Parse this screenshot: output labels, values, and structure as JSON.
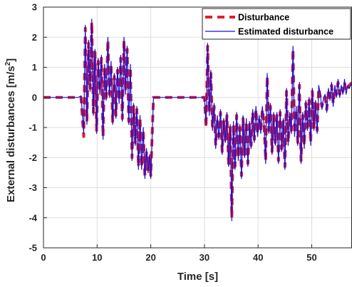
{
  "chart_data": {
    "type": "line",
    "xlabel": "Time [s]",
    "ylabel_main": "External disturbances [m/s",
    "ylabel_sup": "2",
    "ylabel_end": "]",
    "xlim": [
      0,
      57.5
    ],
    "ylim": [
      -5,
      3
    ],
    "xticks": [
      0,
      10,
      20,
      30,
      40,
      50
    ],
    "yticks": [
      -5,
      -4,
      -3,
      -2,
      -1,
      0,
      1,
      2,
      3
    ],
    "grid": true,
    "legend_position": "top-right",
    "colors": {
      "disturbance": "#e0202a",
      "estimated": "#1010e0",
      "grid": "#dedede",
      "axis": "#262626"
    },
    "series": [
      {
        "name": "Disturbance",
        "style": "dashed",
        "x": [
          0,
          6.5,
          7,
          7.5,
          7.8,
          8.1,
          8.4,
          8.7,
          9,
          9.3,
          9.6,
          9.9,
          10.2,
          10.5,
          10.8,
          11.1,
          11.4,
          11.7,
          12,
          12.3,
          12.6,
          12.9,
          13.2,
          13.5,
          13.8,
          14.1,
          14.4,
          14.7,
          15,
          15.3,
          15.6,
          15.9,
          16.2,
          16.5,
          16.8,
          17.1,
          17.4,
          17.7,
          18,
          18.3,
          18.6,
          18.9,
          19.2,
          19.5,
          19.8,
          20,
          20.5,
          30,
          30.3,
          30.6,
          30.9,
          31.2,
          31.5,
          31.8,
          32.1,
          32.4,
          32.7,
          33,
          33.3,
          33.6,
          33.9,
          34.2,
          34.5,
          34.8,
          35.1,
          35.4,
          35.7,
          36,
          36.3,
          36.6,
          36.9,
          37.2,
          37.5,
          37.8,
          38.1,
          38.4,
          38.7,
          39,
          39.3,
          39.6,
          39.9,
          40.2,
          40.5,
          40.8,
          41.1,
          41.4,
          41.7,
          42,
          42.3,
          42.6,
          42.9,
          43.2,
          43.5,
          43.8,
          44.1,
          44.4,
          44.7,
          45,
          45.3,
          45.6,
          45.9,
          46.2,
          46.5,
          46.8,
          47.1,
          47.4,
          47.7,
          48,
          48.3,
          48.6,
          48.9,
          49.2,
          49.5,
          49.8,
          50.1,
          50.4,
          50.7,
          51,
          51.3,
          51.6,
          51.9,
          52.2,
          52.5,
          52.8,
          53.1,
          53.4,
          53.7,
          54,
          54.3,
          54.6,
          54.9,
          55.2,
          55.5,
          55.8,
          56.1,
          56.4,
          56.7,
          57,
          57.5
        ],
        "y": [
          0,
          0,
          0,
          -1.3,
          2.3,
          -0.8,
          1.8,
          0.3,
          2.5,
          -0.5,
          1.5,
          -1.1,
          1.2,
          0.2,
          1.3,
          -1.3,
          1.0,
          0.0,
          1.9,
          0.1,
          1.1,
          -0.8,
          0.7,
          -0.6,
          0.9,
          -0.1,
          1.3,
          -0.7,
          1.9,
          0.2,
          1.6,
          -0.8,
          1.0,
          -2.0,
          -0.3,
          -1.5,
          -0.4,
          -2.3,
          -0.7,
          -2.3,
          -1.1,
          -2.6,
          -1.8,
          -2.4,
          -2.0,
          -2.6,
          0,
          0,
          -1.0,
          1.7,
          -0.5,
          0.8,
          -1.0,
          -0.3,
          -1.6,
          -0.7,
          -1.3,
          -0.5,
          -1.8,
          -0.8,
          -1.4,
          -0.6,
          -2.2,
          -1.0,
          -4.0,
          -0.9,
          -2.3,
          -0.6,
          -2.0,
          -1.0,
          -2.6,
          -0.7,
          -1.9,
          -0.8,
          -2.2,
          -0.9,
          -1.6,
          -0.5,
          -1.4,
          -0.4,
          -1.2,
          -0.7,
          -1.1,
          -0.4,
          -0.8,
          -2.1,
          0.7,
          -1.1,
          -0.3,
          -1.8,
          -0.6,
          -1.5,
          -0.6,
          -2.1,
          -0.5,
          -1.7,
          -0.8,
          -2.3,
          0.2,
          -1.5,
          -0.6,
          -1.1,
          1.6,
          -1.2,
          -0.4,
          -1.5,
          0.4,
          -2.1,
          -0.6,
          -1.6,
          -0.2,
          -1.0,
          -0.1,
          -1.5,
          0.2,
          -1.0,
          -0.2,
          -1.1,
          0.3,
          0.0,
          -0.3,
          -0.1,
          0.0,
          -0.4,
          0.2,
          0.0,
          0.4,
          -0.2,
          0.3,
          0.1,
          0.5,
          0.1,
          0.3,
          0.2,
          0.5,
          0.2,
          0.3,
          0.4,
          0.5
        ]
      },
      {
        "name": "Estimated disturbance",
        "style": "solid",
        "x": [
          0,
          6.5,
          7,
          7.5,
          7.8,
          8.1,
          8.4,
          8.7,
          9,
          9.3,
          9.6,
          9.9,
          10.2,
          10.5,
          10.8,
          11.1,
          11.4,
          11.7,
          12,
          12.3,
          12.6,
          12.9,
          13.2,
          13.5,
          13.8,
          14.1,
          14.4,
          14.7,
          15,
          15.3,
          15.6,
          15.9,
          16.2,
          16.5,
          16.8,
          17.1,
          17.4,
          17.7,
          18,
          18.3,
          18.6,
          18.9,
          19.2,
          19.5,
          19.8,
          20,
          20.5,
          30,
          30.3,
          30.6,
          30.9,
          31.2,
          31.5,
          31.8,
          32.1,
          32.4,
          32.7,
          33,
          33.3,
          33.6,
          33.9,
          34.2,
          34.5,
          34.8,
          35.1,
          35.4,
          35.7,
          36,
          36.3,
          36.6,
          36.9,
          37.2,
          37.5,
          37.8,
          38.1,
          38.4,
          38.7,
          39,
          39.3,
          39.6,
          39.9,
          40.2,
          40.5,
          40.8,
          41.1,
          41.4,
          41.7,
          42,
          42.3,
          42.6,
          42.9,
          43.2,
          43.5,
          43.8,
          44.1,
          44.4,
          44.7,
          45,
          45.3,
          45.6,
          45.9,
          46.2,
          46.5,
          46.8,
          47.1,
          47.4,
          47.7,
          48,
          48.3,
          48.6,
          48.9,
          49.2,
          49.5,
          49.8,
          50.1,
          50.4,
          50.7,
          51,
          51.3,
          51.6,
          51.9,
          52.2,
          52.5,
          52.8,
          53.1,
          53.4,
          53.7,
          54,
          54.3,
          54.6,
          54.9,
          55.2,
          55.5,
          55.8,
          56.1,
          56.4,
          56.7,
          57,
          57.5
        ],
        "y": [
          0,
          0,
          0.05,
          -1.2,
          2.4,
          -0.9,
          1.9,
          0.2,
          2.6,
          -0.6,
          1.6,
          -1.2,
          1.3,
          0.1,
          1.4,
          -1.4,
          1.1,
          -0.1,
          2.0,
          0.0,
          1.2,
          -0.9,
          0.8,
          -0.7,
          1.0,
          -0.2,
          1.4,
          -0.8,
          2.0,
          0.1,
          1.7,
          -0.9,
          1.1,
          -2.1,
          -0.2,
          -1.6,
          -0.3,
          -2.4,
          -0.6,
          -2.4,
          -1.0,
          -2.7,
          -1.7,
          -2.5,
          -1.9,
          -2.7,
          0,
          0,
          -0.9,
          1.8,
          -0.6,
          0.9,
          -1.1,
          -0.2,
          -1.7,
          -0.6,
          -1.4,
          -0.4,
          -1.9,
          -0.7,
          -1.5,
          -0.5,
          -2.3,
          -0.9,
          -4.1,
          -0.8,
          -2.4,
          -0.5,
          -2.1,
          -0.9,
          -2.7,
          -0.6,
          -2.0,
          -0.7,
          -2.3,
          -0.8,
          -1.7,
          -0.4,
          -1.5,
          -0.3,
          -1.3,
          -0.6,
          -1.2,
          -0.3,
          -0.9,
          -2.2,
          0.8,
          -1.2,
          -0.2,
          -1.9,
          -0.5,
          -1.6,
          -0.5,
          -2.2,
          -0.4,
          -1.8,
          -0.7,
          -2.4,
          0.3,
          -1.6,
          -0.5,
          -1.2,
          1.7,
          -1.3,
          -0.3,
          -1.6,
          0.5,
          -2.2,
          -0.5,
          -1.7,
          -0.1,
          -1.1,
          0.0,
          -1.6,
          0.3,
          -1.1,
          -0.1,
          -1.2,
          0.4,
          0.1,
          -0.4,
          0.0,
          0.1,
          -0.5,
          0.3,
          -0.1,
          0.5,
          -0.3,
          0.4,
          0.0,
          0.6,
          0.0,
          0.4,
          0.1,
          0.6,
          0.1,
          0.4,
          0.3,
          0.5
        ]
      }
    ]
  }
}
